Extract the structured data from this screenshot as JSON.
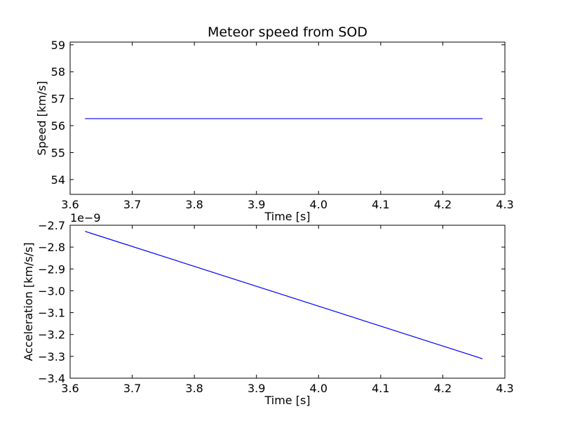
{
  "chart_data": [
    {
      "type": "line",
      "title": "Meteor speed from  SOD",
      "xlabel": "Time [s]",
      "ylabel": "Speed [km/s]",
      "xlim": [
        3.6,
        4.3
      ],
      "ylim": [
        53.45,
        59.1
      ],
      "x_ticks": [
        "3.6",
        "3.7",
        "3.8",
        "3.9",
        "4.0",
        "4.1",
        "4.2",
        "4.3"
      ],
      "y_ticks": [
        "54",
        "55",
        "56",
        "57",
        "58",
        "59"
      ],
      "grid": false,
      "series": [
        {
          "color": "#0000ff",
          "x": [
            3.624,
            4.264
          ],
          "y": [
            56.26,
            56.26
          ]
        }
      ]
    },
    {
      "type": "line",
      "title": "",
      "xlabel": "Time [s]",
      "ylabel": "Acceleration [km/s/s]",
      "y_offset_label": "1e−9",
      "xlim": [
        3.6,
        4.3
      ],
      "ylim": [
        -3.4,
        -2.7
      ],
      "y_scale_note": "tick values multiplied by 1e-9",
      "x_ticks": [
        "3.6",
        "3.7",
        "3.8",
        "3.9",
        "4.0",
        "4.1",
        "4.2",
        "4.3"
      ],
      "y_ticks": [
        "−2.7",
        "−2.8",
        "−2.9",
        "−3.0",
        "−3.1",
        "−3.2",
        "−3.3",
        "−3.4"
      ],
      "grid": false,
      "series": [
        {
          "color": "#0000ff",
          "x": [
            3.624,
            4.264
          ],
          "y": [
            -2.728,
            -3.311
          ]
        }
      ]
    }
  ]
}
